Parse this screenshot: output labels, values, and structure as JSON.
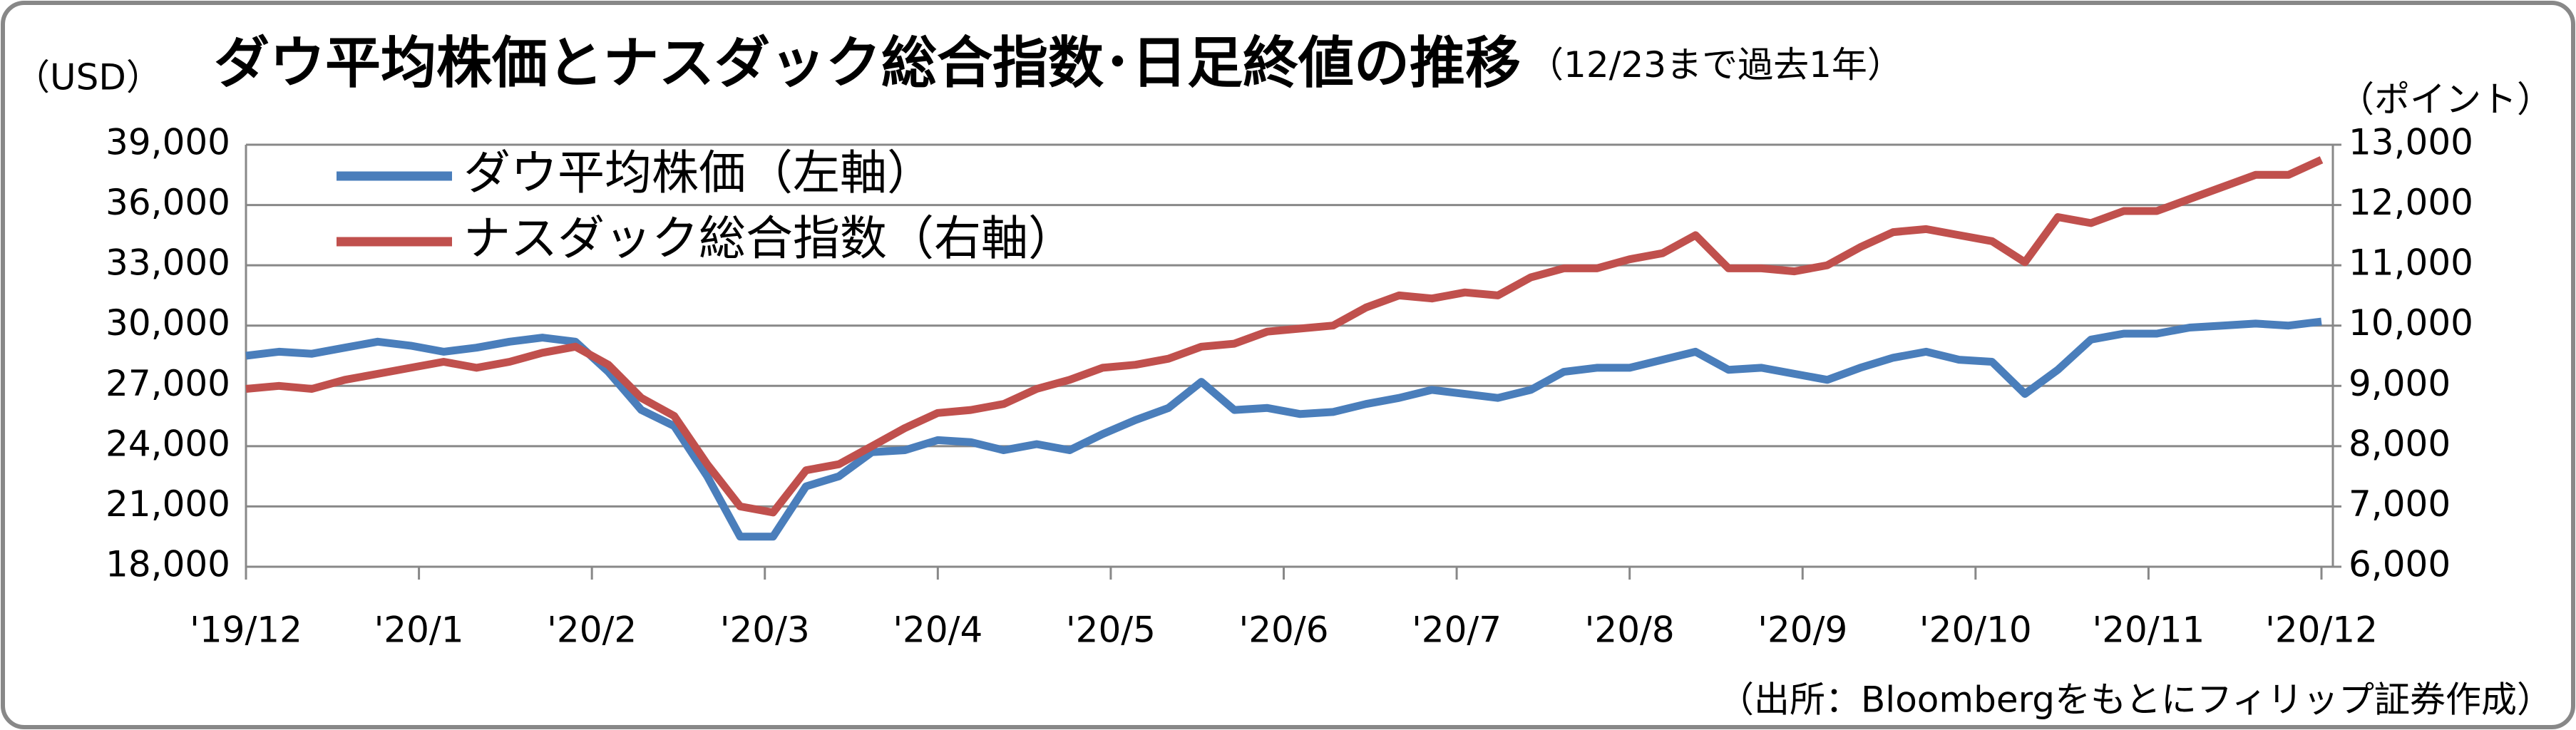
{
  "chart_data": {
    "type": "line",
    "title": "ダウ平均株価とナスダック総合指数･日足終値の推移",
    "subtitle": "（12/23まで過去1年）",
    "y_label": "（USD）",
    "y2_label": "（ポイント）",
    "source": "（出所：Bloombergをもとにフィリップ証券作成）",
    "xticks": [
      "'19/12",
      "'20/1",
      "'20/2",
      "'20/3",
      "'20/4",
      "'20/5",
      "'20/6",
      "'20/7",
      "'20/8",
      "'20/9",
      "'20/10",
      "'20/11",
      "'20/12"
    ],
    "ylim": [
      18000,
      39000
    ],
    "yticks": [
      {
        "value": 18000,
        "label": "18,000"
      },
      {
        "value": 21000,
        "label": "21,000"
      },
      {
        "value": 24000,
        "label": "24,000"
      },
      {
        "value": 27000,
        "label": "27,000"
      },
      {
        "value": 30000,
        "label": "30,000"
      },
      {
        "value": 33000,
        "label": "33,000"
      },
      {
        "value": 36000,
        "label": "36,000"
      },
      {
        "value": 39000,
        "label": "39,000"
      }
    ],
    "y2lim": [
      6000,
      13000
    ],
    "y2ticks": [
      {
        "value": 6000,
        "label": "6,000"
      },
      {
        "value": 7000,
        "label": "7,000"
      },
      {
        "value": 8000,
        "label": "8,000"
      },
      {
        "value": 9000,
        "label": "9,000"
      },
      {
        "value": 10000,
        "label": "10,000"
      },
      {
        "value": 11000,
        "label": "11,000"
      },
      {
        "value": 12000,
        "label": "12,000"
      },
      {
        "value": 13000,
        "label": "13,000"
      }
    ],
    "grid": true,
    "legend": "upper left",
    "series": [
      {
        "name": "ダウ平均株価（左軸）",
        "color": "#4a7ebb",
        "axis": "y",
        "values": [
          28500,
          28700,
          28600,
          28900,
          29200,
          29000,
          28700,
          28900,
          29200,
          29400,
          29200,
          27700,
          25800,
          25000,
          22500,
          19500,
          19500,
          22000,
          22500,
          23700,
          23800,
          24300,
          24200,
          23800,
          24100,
          23800,
          24600,
          25300,
          25900,
          27200,
          25800,
          25900,
          25600,
          25700,
          26100,
          26400,
          26800,
          26600,
          26400,
          26800,
          27700,
          27900,
          27900,
          28300,
          28700,
          27800,
          27900,
          27600,
          27300,
          27900,
          28400,
          28700,
          28300,
          28200,
          26600,
          27800,
          29300,
          29600,
          29600,
          29900,
          30000,
          30100,
          30000,
          30200
        ]
      },
      {
        "name": "ナスダック総合指数（右軸）",
        "color": "#c0504d",
        "axis": "y2",
        "values": [
          8950,
          9000,
          8950,
          9100,
          9200,
          9300,
          9400,
          9300,
          9400,
          9550,
          9650,
          9350,
          8800,
          8500,
          7700,
          7000,
          6900,
          7600,
          7700,
          8000,
          8300,
          8550,
          8600,
          8700,
          8950,
          9100,
          9300,
          9350,
          9450,
          9650,
          9700,
          9900,
          9950,
          10000,
          10300,
          10500,
          10450,
          10550,
          10500,
          10800,
          10950,
          10950,
          11100,
          11200,
          11500,
          10950,
          10950,
          10900,
          11000,
          11300,
          11550,
          11600,
          11500,
          11400,
          11050,
          11800,
          11700,
          11900,
          11900,
          12100,
          12300,
          12500,
          12500,
          12750
        ]
      }
    ]
  }
}
